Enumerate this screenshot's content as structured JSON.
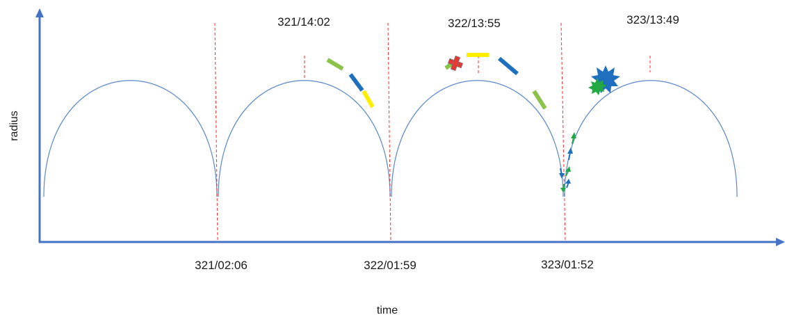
{
  "axes": {
    "x_label": "time",
    "y_label": "radius",
    "axis_color": "#4472c4"
  },
  "orbit": {
    "curve_color": "#5b87c9",
    "marker_color": "#ff2a2a"
  },
  "periapsis_labels": [
    "321/02:06",
    "322/01:59",
    "323/01:52"
  ],
  "apoapsis_labels": [
    "321/14:02",
    "322/13:55",
    "323/13:49"
  ],
  "colors": {
    "green": "#8bc34a",
    "blue": "#1f6fbf",
    "yellow": "#ffee00",
    "red": "#e53935",
    "bright_green": "#22a845"
  },
  "event_icons": [
    "segment-green",
    "segment-blue",
    "segment-yellow",
    "cross-icon",
    "arrow-icon",
    "starburst-icon"
  ]
}
